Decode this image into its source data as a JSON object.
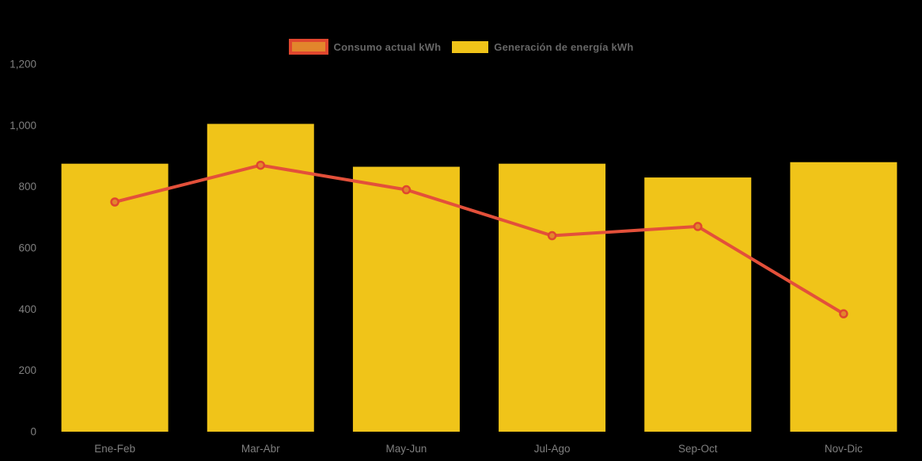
{
  "page": {
    "background": "#000000"
  },
  "legend": {
    "position": "top-center",
    "text_color": "#666666",
    "items": [
      {
        "label": "Consumo actual kWh",
        "type": "line",
        "swatch_fill": "#E2862C",
        "swatch_border": "#E0462E"
      },
      {
        "label": "Generación de energía kWh",
        "type": "bar",
        "swatch_fill": "#F0C419",
        "swatch_border": "#F0C419"
      }
    ]
  },
  "chart_data": {
    "type": "bar",
    "subtype": "bar-with-line-overlay",
    "title": "",
    "xlabel": "",
    "ylabel": "",
    "categories": [
      "Ene-Feb",
      "Mar-Abr",
      "May-Jun",
      "Jul-Ago",
      "Sep-Oct",
      "Nov-Dic"
    ],
    "series": [
      {
        "name": "Generación de energía kWh",
        "type": "bar",
        "color": "#F0C419",
        "values": [
          875,
          1005,
          865,
          875,
          830,
          880
        ]
      },
      {
        "name": "Consumo actual kWh",
        "type": "line",
        "color": "#E3503A",
        "marker_fill": "#E2862C",
        "marker_stroke": "#E0462E",
        "values": [
          750,
          870,
          790,
          640,
          670,
          385
        ]
      }
    ],
    "ylim": [
      0,
      1200
    ],
    "yticks": [
      0,
      200,
      400,
      600,
      800,
      1000,
      1200
    ],
    "ytick_labels": [
      "0",
      "200",
      "400",
      "600",
      "800",
      "1,000",
      "1,200"
    ],
    "grid": false,
    "legend_position": "top-center",
    "axis_text_color": "#7F7F7F",
    "background": "#000000"
  }
}
